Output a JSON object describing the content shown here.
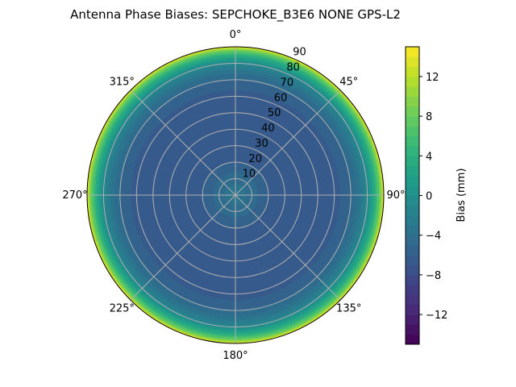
{
  "chart_data": {
    "type": "heatmap",
    "projection": "polar",
    "title": "Antenna Phase Biases: SEPCHOKE_B3E6   NONE GPS-L2",
    "theta_direction": "clockwise",
    "theta_zero": "top",
    "theta_ticks": [
      "0°",
      "45°",
      "90°",
      "135°",
      "180°",
      "225°",
      "270°",
      "315°"
    ],
    "theta_tick_values": [
      0,
      45,
      90,
      135,
      180,
      225,
      270,
      315
    ],
    "radial_ticks": [
      "10",
      "20",
      "30",
      "40",
      "50",
      "60",
      "70",
      "80",
      "90"
    ],
    "radial_tick_values": [
      10,
      20,
      30,
      40,
      50,
      60,
      70,
      80,
      90
    ],
    "rlim": [
      0,
      90
    ],
    "grid": true,
    "colormap": "viridis",
    "colorbar": {
      "label": "Bias (mm)",
      "range": [
        -15,
        15
      ],
      "level_step": 1,
      "ticks": [
        "−12",
        "−8",
        "−4",
        "0",
        "4",
        "8",
        "12"
      ],
      "tick_values": [
        -12,
        -8,
        -4,
        0,
        4,
        8,
        12
      ]
    },
    "radial_profile": {
      "zenith_deg": [
        0,
        10,
        20,
        30,
        40,
        50,
        60,
        70,
        75,
        80,
        85,
        88,
        90
      ],
      "bias_mm": [
        -3,
        -4.5,
        -6,
        -6.8,
        -7,
        -7,
        -6.5,
        -5,
        -3.5,
        -1,
        4,
        9,
        14
      ]
    }
  }
}
